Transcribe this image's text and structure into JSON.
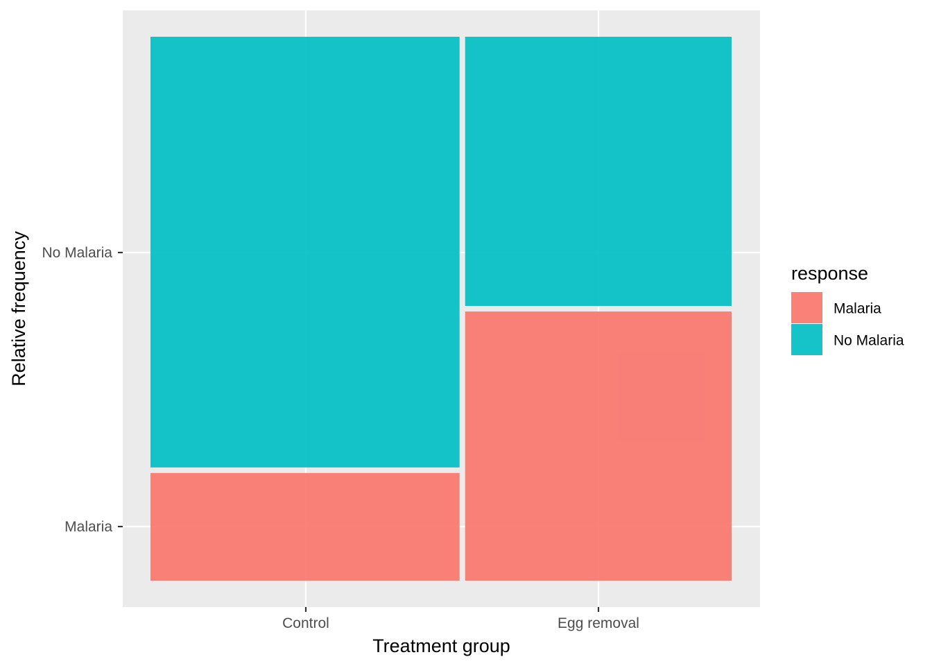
{
  "chart_data": {
    "type": "mosaic",
    "xlabel": "Treatment group",
    "ylabel": "Relative frequency",
    "categories": [
      "Control",
      "Egg removal"
    ],
    "category_widths": [
      0.537,
      0.463
    ],
    "series": [
      {
        "name": "Malaria",
        "values": [
          0.2,
          0.5
        ],
        "color": "#F8766D"
      },
      {
        "name": "No Malaria",
        "values": [
          0.8,
          0.5
        ],
        "color": "#00BFC4"
      }
    ],
    "y_tick_labels": [
      "Malaria",
      "No Malaria"
    ],
    "legend": {
      "title": "response",
      "placement": "right",
      "entries": [
        "Malaria",
        "No Malaria"
      ]
    },
    "grid": true,
    "panel_background": "#EBEBEB",
    "grid_color": "#FFFFFF"
  }
}
